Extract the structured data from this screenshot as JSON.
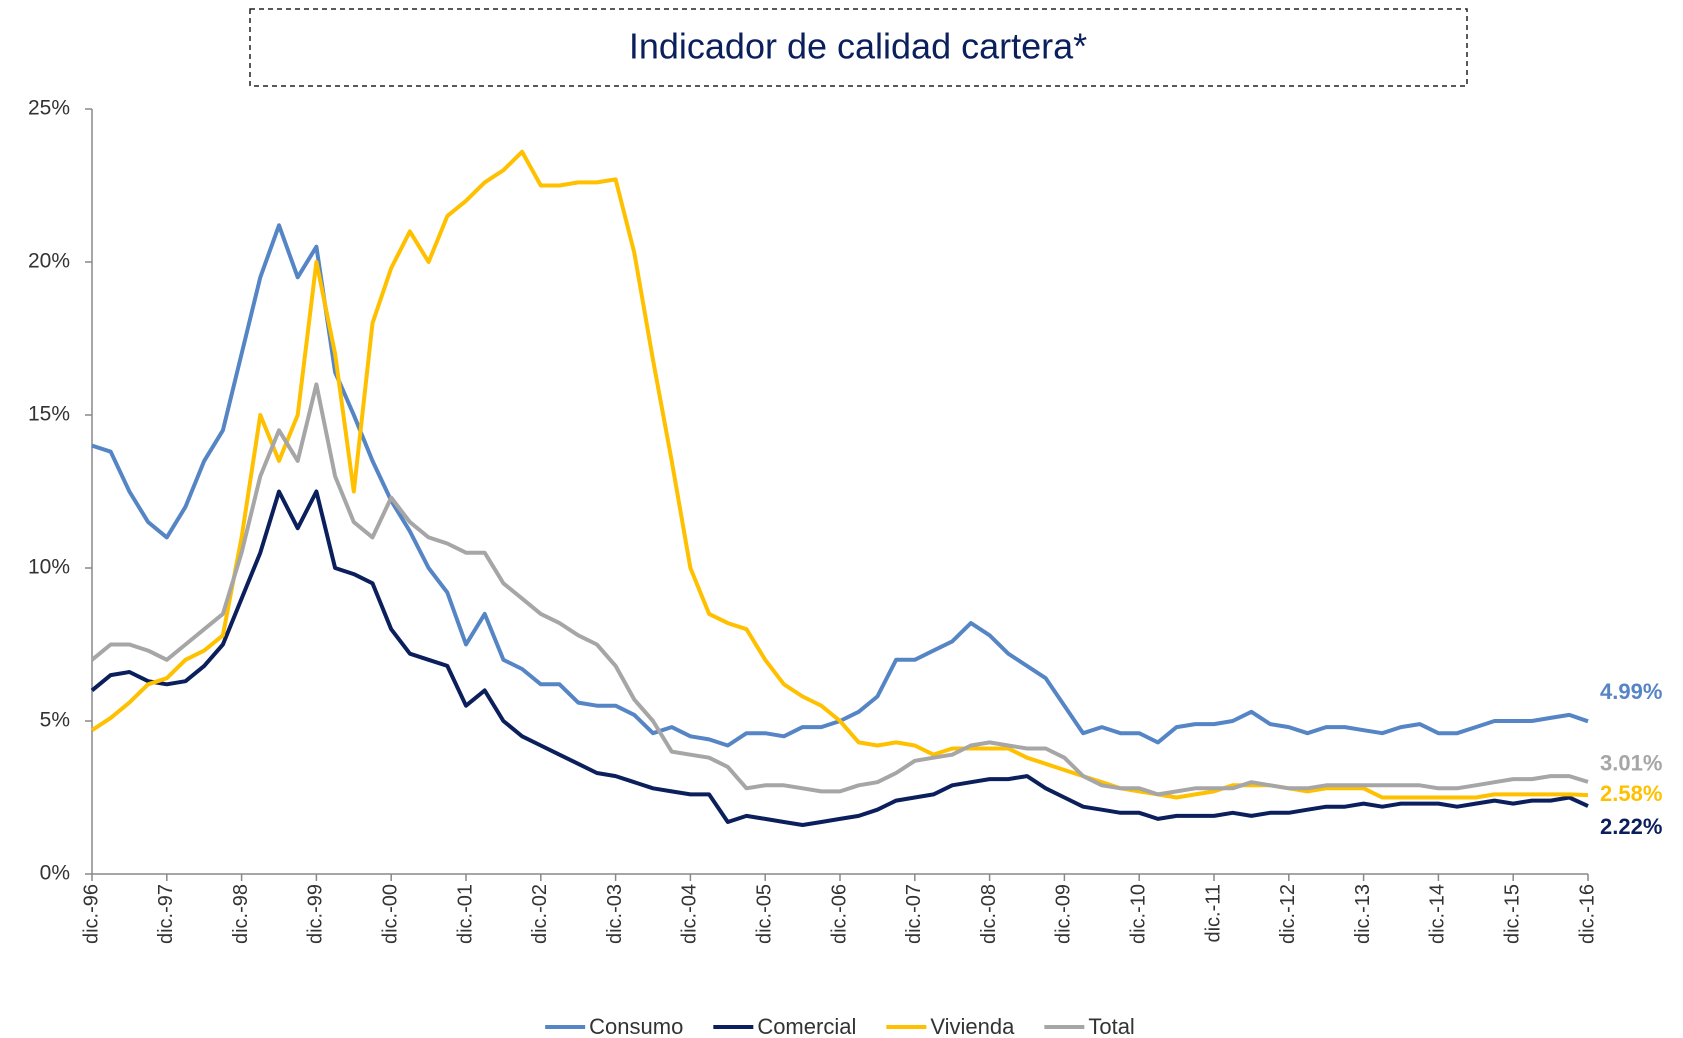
{
  "chart_data": {
    "type": "line",
    "title": "Indicador de calidad cartera*",
    "categories": [
      "dic.-96",
      null,
      null,
      null,
      "dic.-97",
      null,
      null,
      null,
      "dic.-98",
      null,
      null,
      null,
      "dic.-99",
      null,
      null,
      null,
      "dic.-00",
      null,
      null,
      null,
      "dic.-01",
      null,
      null,
      null,
      "dic.-02",
      null,
      null,
      null,
      "dic.-03",
      null,
      null,
      null,
      "dic.-04",
      null,
      null,
      null,
      "dic.-05",
      null,
      null,
      null,
      "dic.-06",
      null,
      null,
      null,
      "dic.-07",
      null,
      null,
      null,
      "dic.-08",
      null,
      null,
      null,
      "dic.-09",
      null,
      null,
      null,
      "dic.-10",
      null,
      null,
      null,
      "dic.-11",
      null,
      null,
      null,
      "dic.-12",
      null,
      null,
      null,
      "dic.-13",
      null,
      null,
      null,
      "dic.-14",
      null,
      null,
      null,
      "dic.-15",
      null,
      null,
      null,
      "dic.-16"
    ],
    "ylim": [
      0,
      25
    ],
    "yticks": [
      {
        "value": 0,
        "label": "0%"
      },
      {
        "value": 5,
        "label": "5%"
      },
      {
        "value": 10,
        "label": "10%"
      },
      {
        "value": 15,
        "label": "15%"
      },
      {
        "value": 20,
        "label": "20%"
      },
      {
        "value": 25,
        "label": "25%"
      }
    ],
    "grid": false,
    "legend": "bottom",
    "series": [
      {
        "name": "Consumo",
        "color": "#5585c5",
        "values": [
          14.0,
          13.8,
          12.5,
          11.5,
          11.0,
          12.0,
          13.5,
          14.5,
          17.0,
          19.5,
          21.2,
          19.5,
          20.5,
          16.4,
          15.0,
          13.5,
          12.2,
          11.2,
          10.0,
          9.2,
          7.5,
          8.5,
          7.0,
          6.7,
          6.2,
          6.2,
          5.6,
          5.5,
          5.5,
          5.2,
          4.6,
          4.8,
          4.5,
          4.4,
          4.2,
          4.6,
          4.6,
          4.5,
          4.8,
          4.8,
          5.0,
          5.3,
          5.8,
          7.0,
          7.0,
          7.3,
          7.6,
          8.2,
          7.8,
          7.2,
          6.8,
          6.4,
          5.5,
          4.6,
          4.8,
          4.6,
          4.6,
          4.3,
          4.8,
          4.9,
          4.9,
          5.0,
          5.3,
          4.9,
          4.8,
          4.6,
          4.8,
          4.8,
          4.7,
          4.6,
          4.8,
          4.9,
          4.6,
          4.6,
          4.8,
          5.0,
          5.0,
          5.0,
          5.1,
          5.2,
          4.99
        ],
        "value_labels": [
          null,
          null,
          null,
          null,
          null,
          null,
          null,
          null,
          null,
          null,
          null,
          null,
          null,
          null,
          null,
          null,
          null,
          null,
          null,
          null,
          null,
          null,
          null,
          null,
          null,
          null,
          null,
          null,
          null,
          null,
          null,
          null,
          null,
          null,
          null,
          null,
          null,
          null,
          null,
          null,
          null,
          null,
          null,
          null,
          null,
          null,
          null,
          null,
          null,
          null,
          null,
          null,
          null,
          null,
          null,
          null,
          null,
          null,
          null,
          null,
          null,
          null,
          null,
          null,
          null,
          null,
          null,
          null,
          null,
          null,
          null,
          null,
          null,
          null,
          null,
          null,
          null,
          null,
          null,
          null,
          "4.99%"
        ]
      },
      {
        "name": "Comercial",
        "color": "#0b1f5c",
        "values": [
          6.0,
          6.5,
          6.6,
          6.3,
          6.2,
          6.3,
          6.8,
          7.5,
          9.0,
          10.5,
          12.5,
          11.3,
          12.5,
          10.0,
          9.8,
          9.5,
          8.0,
          7.2,
          7.0,
          6.8,
          5.5,
          6.0,
          5.0,
          4.5,
          4.2,
          3.9,
          3.6,
          3.3,
          3.2,
          3.0,
          2.8,
          2.7,
          2.6,
          2.6,
          1.7,
          1.9,
          1.8,
          1.7,
          1.6,
          1.7,
          1.8,
          1.9,
          2.1,
          2.4,
          2.5,
          2.6,
          2.9,
          3.0,
          3.1,
          3.1,
          3.2,
          2.8,
          2.5,
          2.2,
          2.1,
          2.0,
          2.0,
          1.8,
          1.9,
          1.9,
          1.9,
          2.0,
          1.9,
          2.0,
          2.0,
          2.1,
          2.2,
          2.2,
          2.3,
          2.2,
          2.3,
          2.3,
          2.3,
          2.2,
          2.3,
          2.4,
          2.3,
          2.4,
          2.4,
          2.5,
          2.22
        ],
        "value_labels": [
          null,
          null,
          null,
          null,
          null,
          null,
          null,
          null,
          null,
          null,
          null,
          null,
          null,
          null,
          null,
          null,
          null,
          null,
          null,
          null,
          null,
          null,
          null,
          null,
          null,
          null,
          null,
          null,
          null,
          null,
          null,
          null,
          null,
          null,
          null,
          null,
          null,
          null,
          null,
          null,
          null,
          null,
          null,
          null,
          null,
          null,
          null,
          null,
          null,
          null,
          null,
          null,
          null,
          null,
          null,
          null,
          null,
          null,
          null,
          null,
          null,
          null,
          null,
          null,
          null,
          null,
          null,
          null,
          null,
          null,
          null,
          null,
          null,
          null,
          null,
          null,
          null,
          null,
          null,
          null,
          "2.22%"
        ]
      },
      {
        "name": "Vivienda",
        "color": "#ffc000",
        "values": [
          4.7,
          5.1,
          5.6,
          6.2,
          6.4,
          7.0,
          7.3,
          7.8,
          11.0,
          15.0,
          13.5,
          15.0,
          20.0,
          17.0,
          12.5,
          18.0,
          19.8,
          21.0,
          20.0,
          21.5,
          22.0,
          22.6,
          23.0,
          23.6,
          22.5,
          22.5,
          22.6,
          22.6,
          22.7,
          20.3,
          16.8,
          13.5,
          10.0,
          8.5,
          8.2,
          8.0,
          7.0,
          6.2,
          5.8,
          5.5,
          5.0,
          4.3,
          4.2,
          4.3,
          4.2,
          3.9,
          4.1,
          4.1,
          4.1,
          4.1,
          3.8,
          3.6,
          3.4,
          3.2,
          3.0,
          2.8,
          2.7,
          2.6,
          2.5,
          2.6,
          2.7,
          2.9,
          2.9,
          2.9,
          2.8,
          2.7,
          2.8,
          2.8,
          2.8,
          2.5,
          2.5,
          2.5,
          2.5,
          2.5,
          2.5,
          2.6,
          2.6,
          2.6,
          2.6,
          2.6,
          2.58
        ],
        "value_labels": [
          null,
          null,
          null,
          null,
          null,
          null,
          null,
          null,
          null,
          null,
          null,
          null,
          null,
          null,
          null,
          null,
          null,
          null,
          null,
          null,
          null,
          null,
          null,
          null,
          null,
          null,
          null,
          null,
          null,
          null,
          null,
          null,
          null,
          null,
          null,
          null,
          null,
          null,
          null,
          null,
          null,
          null,
          null,
          null,
          null,
          null,
          null,
          null,
          null,
          null,
          null,
          null,
          null,
          null,
          null,
          null,
          null,
          null,
          null,
          null,
          null,
          null,
          null,
          null,
          null,
          null,
          null,
          null,
          null,
          null,
          null,
          null,
          null,
          null,
          null,
          null,
          null,
          null,
          null,
          null,
          "2.58%"
        ]
      },
      {
        "name": "Total",
        "color": "#a6a6a6",
        "values": [
          7.0,
          7.5,
          7.5,
          7.3,
          7.0,
          7.5,
          8.0,
          8.5,
          10.5,
          13.0,
          14.5,
          13.5,
          16.0,
          13.0,
          11.5,
          11.0,
          12.3,
          11.5,
          11.0,
          10.8,
          10.5,
          10.5,
          9.5,
          9.0,
          8.5,
          8.2,
          7.8,
          7.5,
          6.8,
          5.7,
          5.0,
          4.0,
          3.9,
          3.8,
          3.5,
          2.8,
          2.9,
          2.9,
          2.8,
          2.7,
          2.7,
          2.9,
          3.0,
          3.3,
          3.7,
          3.8,
          3.9,
          4.2,
          4.3,
          4.2,
          4.1,
          4.1,
          3.8,
          3.2,
          2.9,
          2.8,
          2.8,
          2.6,
          2.7,
          2.8,
          2.8,
          2.8,
          3.0,
          2.9,
          2.8,
          2.8,
          2.9,
          2.9,
          2.9,
          2.9,
          2.9,
          2.9,
          2.8,
          2.8,
          2.9,
          3.0,
          3.1,
          3.1,
          3.2,
          3.2,
          3.01
        ],
        "value_labels": [
          null,
          null,
          null,
          null,
          null,
          null,
          null,
          null,
          null,
          null,
          null,
          null,
          null,
          null,
          null,
          null,
          null,
          null,
          null,
          null,
          null,
          null,
          null,
          null,
          null,
          null,
          null,
          null,
          null,
          null,
          null,
          null,
          null,
          null,
          null,
          null,
          null,
          null,
          null,
          null,
          null,
          null,
          null,
          null,
          null,
          null,
          null,
          null,
          null,
          null,
          null,
          null,
          null,
          null,
          null,
          null,
          null,
          null,
          null,
          null,
          null,
          null,
          null,
          null,
          null,
          null,
          null,
          null,
          null,
          null,
          null,
          null,
          null,
          null,
          null,
          null,
          null,
          null,
          null,
          null,
          "3.01%"
        ]
      }
    ]
  }
}
